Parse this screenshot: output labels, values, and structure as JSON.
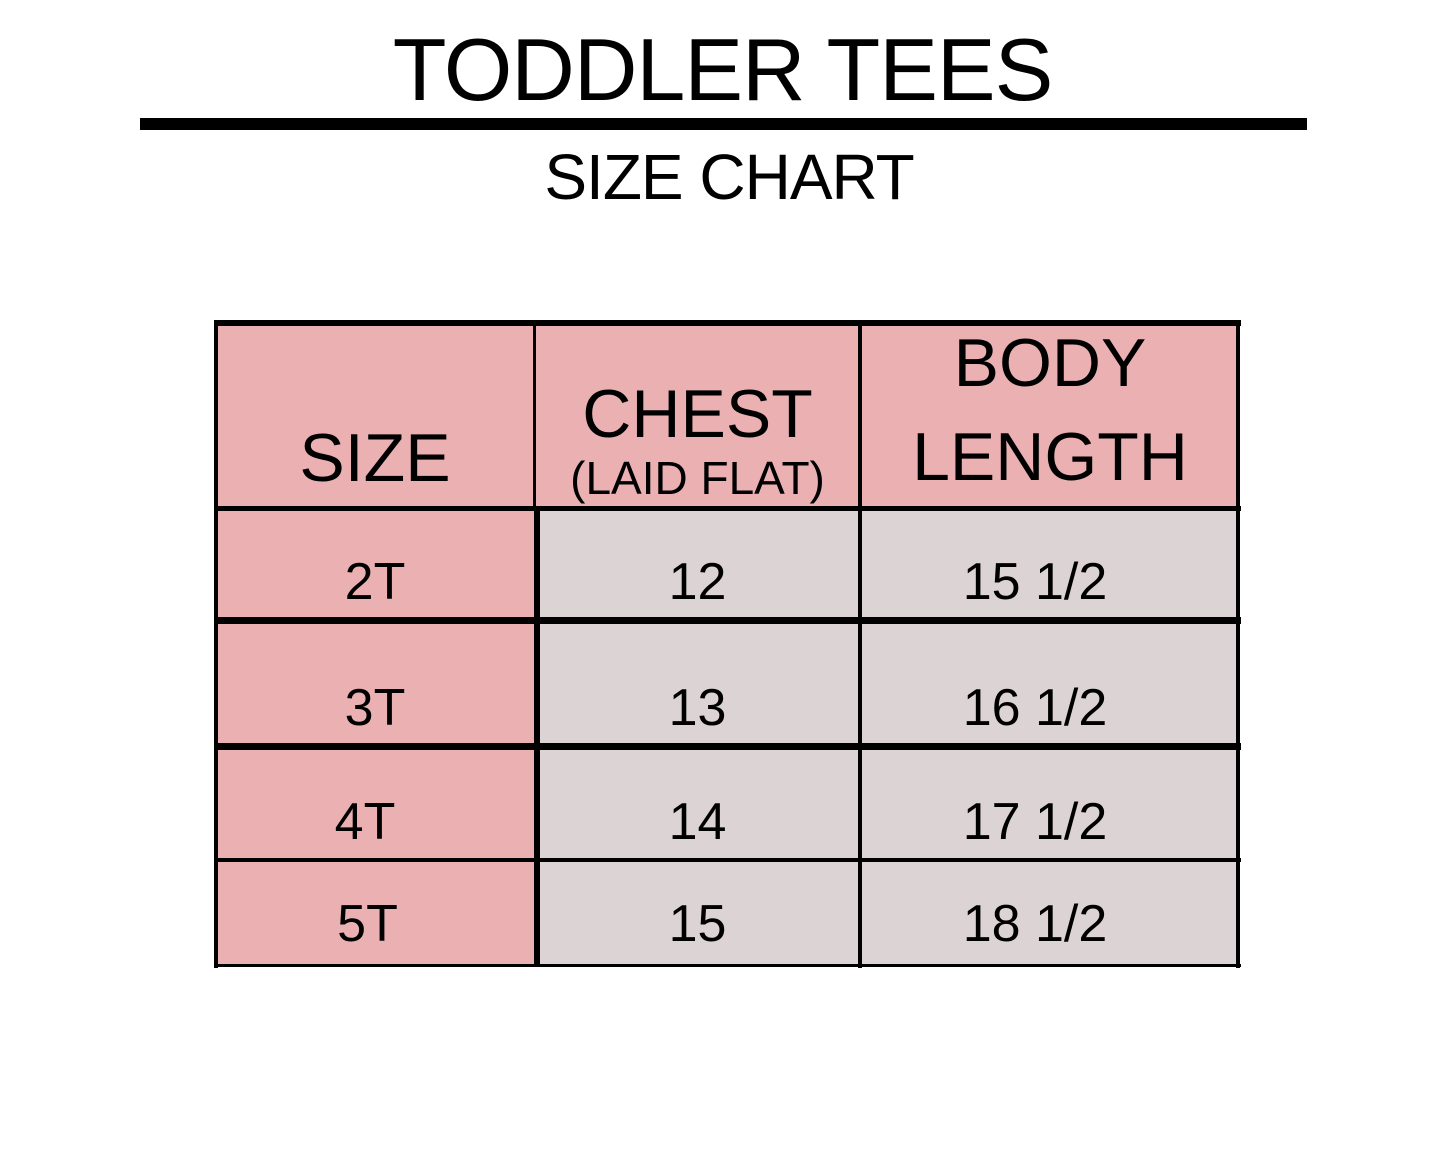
{
  "title": "TODDLER TEES",
  "subtitle": "SIZE CHART",
  "colors": {
    "header": "#ebb1b2",
    "size_column": "#ebb1b2",
    "data_cells": "#dcd3d4",
    "borders": "#000000"
  },
  "table": {
    "headers": {
      "size": "SIZE",
      "chest": "CHEST",
      "chest_note": "(LAID FLAT)",
      "body_length_1": "BODY",
      "body_length_2": "LENGTH"
    },
    "rows": [
      {
        "size": "2T",
        "chest": "12",
        "body_length": "15 1/2"
      },
      {
        "size": "3T",
        "chest": "13",
        "body_length": "16 1/2"
      },
      {
        "size": "4T",
        "chest": "14",
        "body_length": "17 1/2"
      },
      {
        "size": "5T",
        "chest": "15",
        "body_length": "18 1/2"
      }
    ]
  }
}
